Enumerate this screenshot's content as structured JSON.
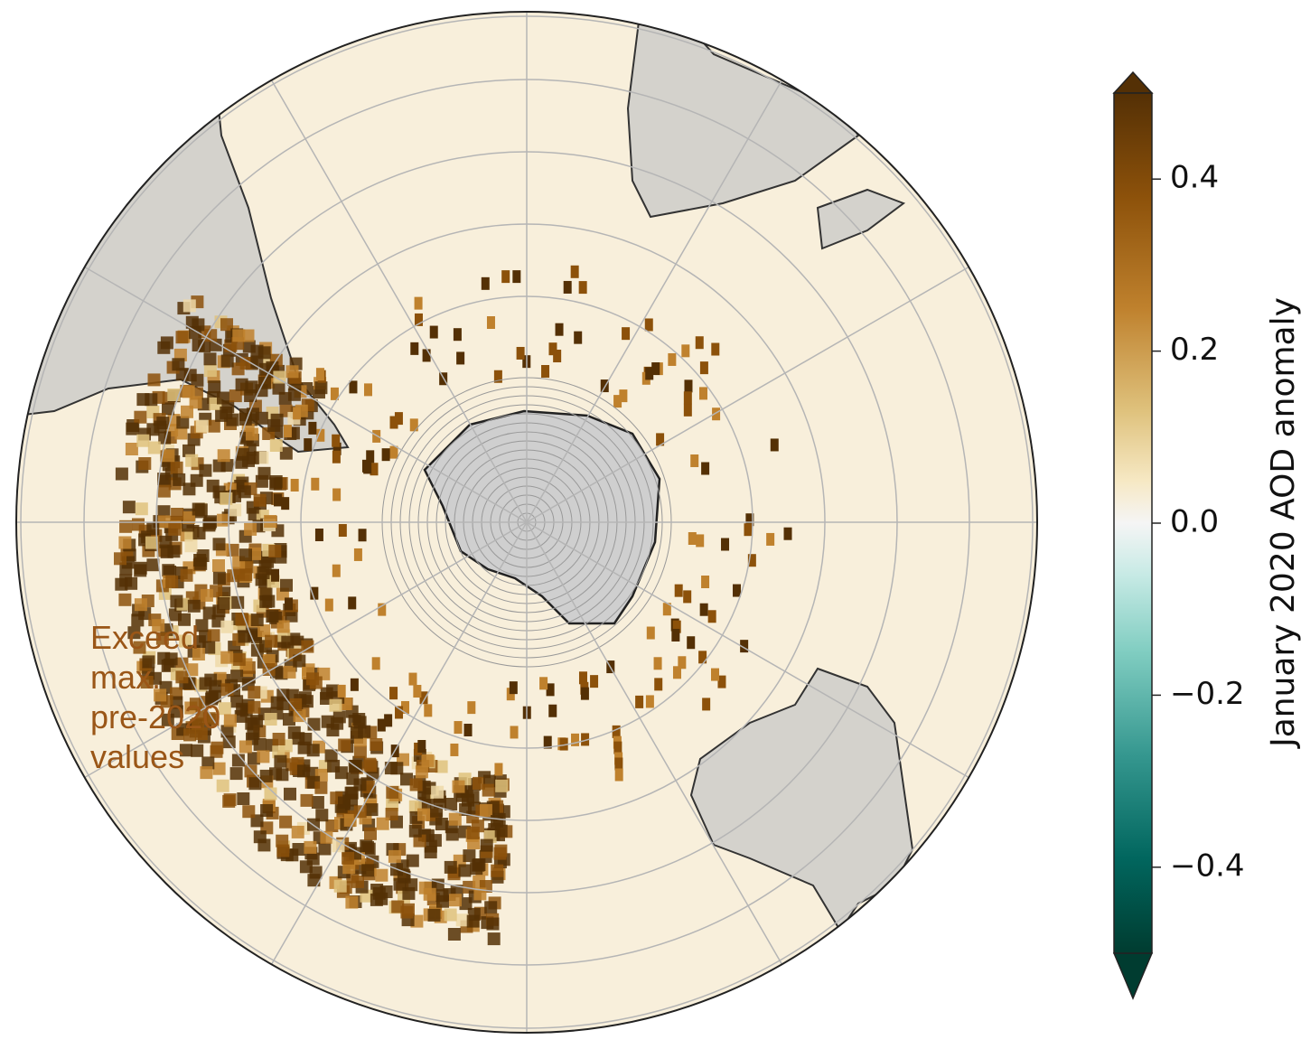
{
  "map": {
    "annotation": [
      "Exceed",
      "max.",
      "pre-2020",
      "values"
    ]
  },
  "colorbar": {
    "label": "January 2020 AOD anomaly",
    "lim": [
      -0.5,
      0.5
    ],
    "ticks": [
      0.4,
      0.2,
      {
        "value": 0,
        "label": "0.0"
      },
      {
        "value": -0.2,
        "label": "−0.2"
      },
      {
        "value": -0.4,
        "label": "−0.4"
      }
    ]
  }
}
